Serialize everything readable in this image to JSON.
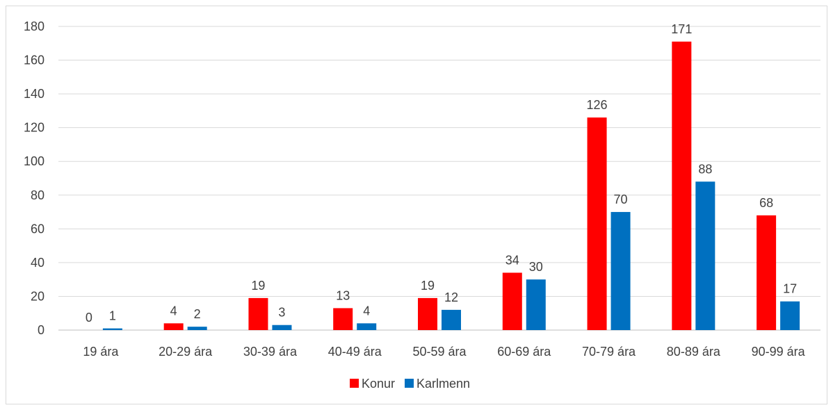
{
  "chart_data": {
    "type": "bar",
    "categories": [
      "19 ára",
      "20-29 ára",
      "30-39 ára",
      "40-49 ára",
      "50-59 ára",
      "60-69 ára",
      "70-79 ára",
      "80-89 ára",
      "90-99 ára"
    ],
    "series": [
      {
        "name": "Konur",
        "color": "#ff0000",
        "values": [
          0,
          4,
          19,
          13,
          19,
          34,
          126,
          171,
          68
        ]
      },
      {
        "name": "Karlmenn",
        "color": "#0070c0",
        "values": [
          1,
          2,
          3,
          4,
          12,
          30,
          70,
          88,
          17
        ]
      }
    ],
    "yticks": [
      "0",
      "20",
      "40",
      "60",
      "80",
      "100",
      "120",
      "140",
      "160",
      "180"
    ],
    "ylim": [
      0,
      180
    ],
    "grid": true,
    "legend_position": "bottom"
  }
}
